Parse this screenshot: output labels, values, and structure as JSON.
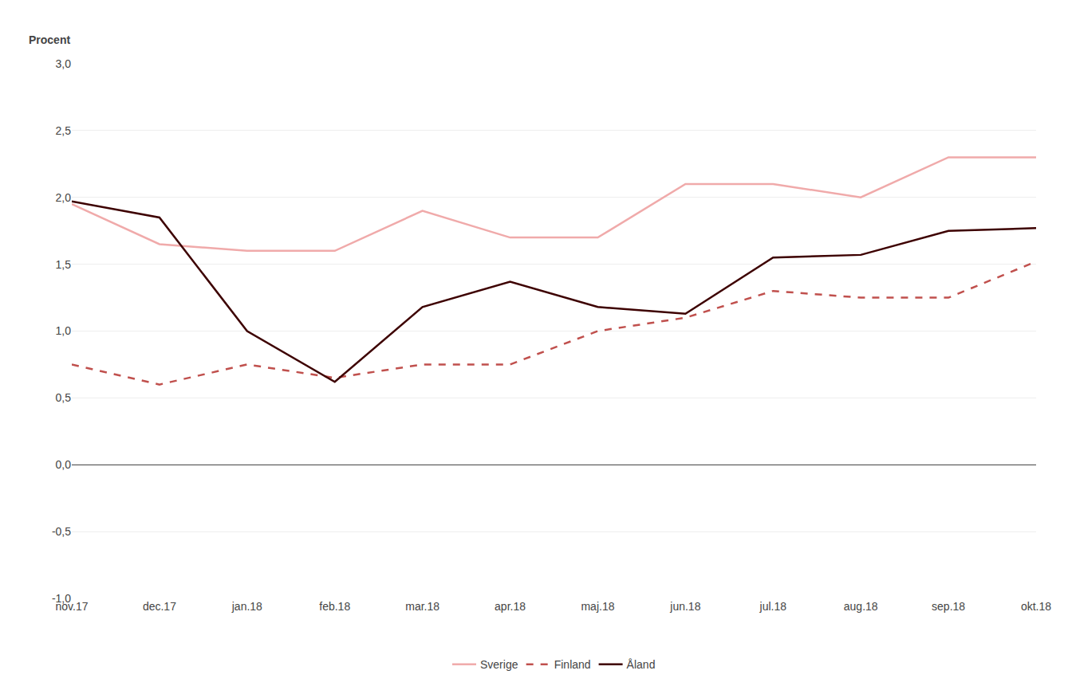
{
  "chart_data": {
    "type": "line",
    "ylabel": "Procent",
    "categories": [
      "nov.17",
      "dec.17",
      "jan.18",
      "feb.18",
      "mar.18",
      "apr.18",
      "maj.18",
      "jun.18",
      "jul.18",
      "aug.18",
      "sep.18",
      "okt.18"
    ],
    "series": [
      {
        "name": "Sverige",
        "color": "#F0AAAA",
        "line_style": "solid",
        "values": [
          1.95,
          1.65,
          1.6,
          1.6,
          1.9,
          1.7,
          1.7,
          2.1,
          2.1,
          2.0,
          2.3,
          2.3
        ]
      },
      {
        "name": "Finland",
        "color": "#C0504D",
        "line_style": "dashed",
        "values": [
          0.75,
          0.6,
          0.75,
          0.65,
          0.75,
          0.75,
          1.0,
          1.1,
          1.3,
          1.25,
          1.25,
          1.52
        ]
      },
      {
        "name": "Åland",
        "color": "#3D0000",
        "line_style": "solid",
        "values": [
          1.97,
          1.85,
          1.0,
          0.62,
          1.18,
          1.37,
          1.18,
          1.13,
          1.55,
          1.57,
          1.75,
          1.77
        ]
      }
    ],
    "ylim": [
      -1.0,
      3.0
    ],
    "yticks": [
      {
        "value": -1.0,
        "label": "-1,0"
      },
      {
        "value": -0.5,
        "label": "-0,5"
      },
      {
        "value": 0.0,
        "label": "0,0"
      },
      {
        "value": 0.5,
        "label": "0,5"
      },
      {
        "value": 1.0,
        "label": "1,0"
      },
      {
        "value": 1.5,
        "label": "1,5"
      },
      {
        "value": 2.0,
        "label": "2,0"
      },
      {
        "value": 2.5,
        "label": "2,5"
      },
      {
        "value": 3.0,
        "label": "3,0"
      }
    ],
    "grid": true,
    "legend": "bottom"
  }
}
